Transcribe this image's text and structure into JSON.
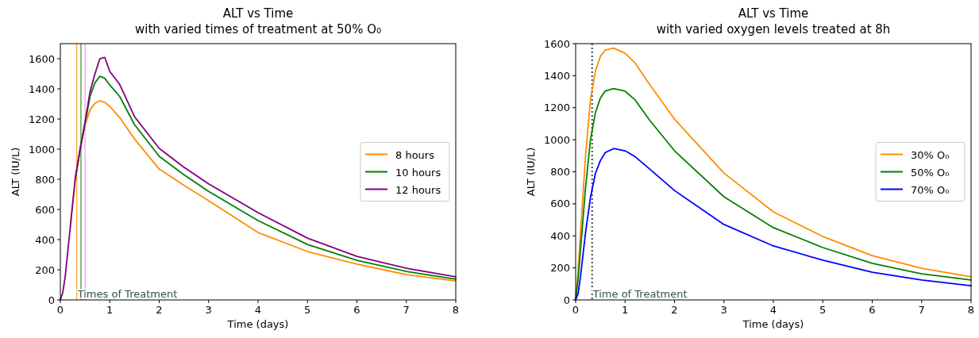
{
  "chart_data": [
    {
      "type": "line",
      "title": "ALT vs Time",
      "subtitle": "with varied times of treatment at 50% O₀",
      "xlabel": "Time (days)",
      "ylabel": "ALT (IU/L)",
      "x": [
        0,
        0.05,
        0.1,
        0.2,
        0.3,
        0.4,
        0.5,
        0.6,
        0.7,
        0.8,
        0.9,
        1,
        1.2,
        1.5,
        2,
        2.5,
        3,
        4,
        5,
        6,
        7,
        8
      ],
      "series": [
        {
          "name": "8 hours",
          "color": "#ff8c00",
          "values": [
            null,
            null,
            null,
            480,
            800,
            1000,
            1160,
            1260,
            1305,
            1321,
            1310,
            1284,
            1210,
            1068,
            868,
            760,
            658,
            447,
            321,
            237,
            168,
            126
          ]
        },
        {
          "name": "10 hours",
          "color": "#008000",
          "values": [
            null,
            null,
            null,
            null,
            800,
            1000,
            1170,
            1350,
            1440,
            1484,
            1470,
            1426,
            1350,
            1163,
            953,
            830,
            720,
            526,
            368,
            263,
            189,
            137
          ]
        },
        {
          "name": "12 hours",
          "color": "#800080",
          "values": [
            0,
            50,
            160,
            480,
            800,
            1000,
            1180,
            1380,
            1500,
            1600,
            1608,
            1516,
            1430,
            1216,
            1005,
            880,
            770,
            579,
            410,
            289,
            210,
            153
          ]
        }
      ],
      "xlim": [
        0,
        8
      ],
      "xticks": [
        0,
        1,
        2,
        3,
        4,
        5,
        6,
        7,
        8
      ],
      "ylim": [
        0,
        1700
      ],
      "yticks": [
        0,
        200,
        400,
        600,
        800,
        1000,
        1200,
        1400,
        1600
      ],
      "ref_lines": [
        {
          "axis": "x",
          "value": 0.333,
          "label": "Times of Treatment",
          "color": "#ff8c00"
        },
        {
          "axis": "x",
          "value": 0.417,
          "label": null,
          "color": "#008000"
        },
        {
          "axis": "x",
          "value": 0.5,
          "label": null,
          "color": "#ee82ee"
        }
      ],
      "grid": false,
      "legend": "right"
    },
    {
      "type": "line",
      "title": "ALT vs Time",
      "subtitle": "with varied oxygen levels treated at 8h",
      "xlabel": "Time (days)",
      "ylabel": "ALT (IU/L)",
      "x": [
        0,
        0.05,
        0.1,
        0.2,
        0.3,
        0.4,
        0.5,
        0.6,
        0.77,
        1,
        1.2,
        1.5,
        2,
        3,
        4,
        5,
        6,
        7,
        8
      ],
      "series": [
        {
          "name": "30% O₀",
          "color": "#ff8c00",
          "values": [
            0,
            180,
            430,
            900,
            1250,
            1430,
            1520,
            1560,
            1572,
            1540,
            1480,
            1344,
            1129,
            792,
            550,
            396,
            277,
            198,
            144
          ]
        },
        {
          "name": "50% O₀",
          "color": "#008000",
          "values": [
            0,
            130,
            320,
            700,
            1000,
            1170,
            1260,
            1305,
            1319,
            1303,
            1250,
            1121,
            931,
            644,
            451,
            327,
            228,
            163,
            124
          ]
        },
        {
          "name": "70% O₀",
          "color": "#0000ff",
          "values": [
            0,
            40,
            150,
            420,
            640,
            790,
            870,
            920,
            945,
            931,
            895,
            817,
            683,
            471,
            337,
            248,
            173,
            124,
            89
          ]
        }
      ],
      "xlim": [
        0,
        8
      ],
      "xticks": [
        0,
        1,
        2,
        3,
        4,
        5,
        6,
        7,
        8
      ],
      "ylim": [
        0,
        1600
      ],
      "yticks": [
        0,
        200,
        400,
        600,
        800,
        1000,
        1200,
        1400,
        1600
      ],
      "ref_lines": [
        {
          "axis": "x",
          "value": 0.333,
          "label": "Time of Treatment",
          "color": "#2f4f4f",
          "line_style": "dotted"
        }
      ],
      "grid": false,
      "legend": "right"
    }
  ]
}
